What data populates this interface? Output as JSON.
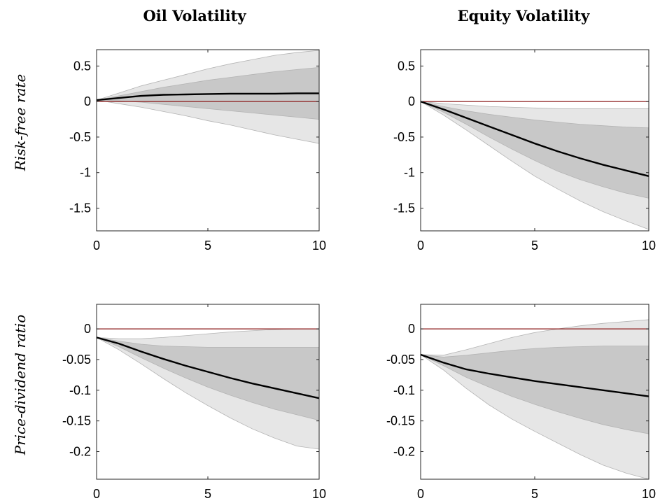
{
  "figure": {
    "column_titles": [
      "Oil Volatility",
      "Equity Volatility"
    ],
    "row_labels": [
      "Risk-free rate",
      "Price-dividend ratio"
    ]
  },
  "colors": {
    "outer_band": "#e6e6e6",
    "inner_band": "#c8c8c8",
    "band_edge": "#b4b4b4",
    "median_line": "#000000",
    "zero_line": "#8b1a1a"
  },
  "chart_data": [
    {
      "type": "area",
      "column": "Oil Volatility",
      "row": "Risk-free rate",
      "x": [
        0,
        1,
        2,
        3,
        4,
        5,
        6,
        7,
        8,
        9,
        10
      ],
      "xlim": [
        0,
        10
      ],
      "ylim": [
        -1.82,
        0.73
      ],
      "xticks": [
        0,
        5,
        10
      ],
      "xtick_labels": [
        "0",
        "5",
        "10"
      ],
      "yticks": [
        0.5,
        0,
        -0.5,
        -1,
        -1.5
      ],
      "ytick_labels": [
        "0.5",
        "0",
        "-0.5",
        "-1",
        "-1.5"
      ],
      "median": [
        0.02,
        0.05,
        0.08,
        0.095,
        0.1,
        0.105,
        0.11,
        0.11,
        0.11,
        0.115,
        0.115
      ],
      "inner_band": {
        "upper": [
          0.02,
          0.08,
          0.14,
          0.2,
          0.25,
          0.3,
          0.34,
          0.38,
          0.42,
          0.45,
          0.48
        ],
        "lower": [
          0.02,
          0.01,
          -0.01,
          -0.04,
          -0.07,
          -0.1,
          -0.13,
          -0.16,
          -0.19,
          -0.22,
          -0.25
        ]
      },
      "outer_band": {
        "upper": [
          0.02,
          0.12,
          0.22,
          0.3,
          0.38,
          0.46,
          0.53,
          0.59,
          0.65,
          0.69,
          0.72
        ],
        "lower": [
          0.02,
          -0.03,
          -0.08,
          -0.14,
          -0.2,
          -0.27,
          -0.33,
          -0.4,
          -0.47,
          -0.53,
          -0.59
        ]
      },
      "zero_line": 0
    },
    {
      "type": "area",
      "column": "Equity Volatility",
      "row": "Risk-free rate",
      "x": [
        0,
        1,
        2,
        3,
        4,
        5,
        6,
        7,
        8,
        9,
        10
      ],
      "xlim": [
        0,
        10
      ],
      "ylim": [
        -1.82,
        0.73
      ],
      "xticks": [
        0,
        5,
        10
      ],
      "xtick_labels": [
        "0",
        "5",
        "10"
      ],
      "yticks": [
        0.5,
        0,
        -0.5,
        -1,
        -1.5
      ],
      "ytick_labels": [
        "0.5",
        "0",
        "-0.5",
        "-1",
        "-1.5"
      ],
      "median": [
        0.0,
        -0.11,
        -0.23,
        -0.35,
        -0.47,
        -0.59,
        -0.7,
        -0.8,
        -0.89,
        -0.97,
        -1.05
      ],
      "inner_band": {
        "upper": [
          0.0,
          -0.07,
          -0.13,
          -0.18,
          -0.22,
          -0.26,
          -0.29,
          -0.32,
          -0.34,
          -0.36,
          -0.37
        ],
        "lower": [
          0.0,
          -0.15,
          -0.32,
          -0.5,
          -0.67,
          -0.83,
          -0.98,
          -1.1,
          -1.2,
          -1.29,
          -1.36
        ]
      },
      "outer_band": {
        "upper": [
          0.0,
          -0.03,
          -0.05,
          -0.07,
          -0.08,
          -0.09,
          -0.1,
          -0.1,
          -0.1,
          -0.1,
          -0.1
        ],
        "lower": [
          0.0,
          -0.19,
          -0.4,
          -0.62,
          -0.84,
          -1.05,
          -1.23,
          -1.4,
          -1.55,
          -1.68,
          -1.8
        ]
      },
      "zero_line": 0
    },
    {
      "type": "area",
      "column": "Oil Volatility",
      "row": "Price-dividend ratio",
      "x": [
        0,
        1,
        2,
        3,
        4,
        5,
        6,
        7,
        8,
        9,
        10
      ],
      "xlim": [
        0,
        10
      ],
      "ylim": [
        -0.245,
        0.04
      ],
      "xticks": [
        0,
        5,
        10
      ],
      "xtick_labels": [
        "0",
        "5",
        "10"
      ],
      "yticks": [
        0,
        -0.05,
        -0.1,
        -0.15,
        -0.2
      ],
      "ytick_labels": [
        "0",
        "-0.05",
        "-0.1",
        "-0.15",
        "-0.2"
      ],
      "median": [
        -0.014,
        -0.024,
        -0.037,
        -0.049,
        -0.06,
        -0.07,
        -0.08,
        -0.089,
        -0.097,
        -0.105,
        -0.113
      ],
      "inner_band": {
        "upper": [
          -0.014,
          -0.02,
          -0.025,
          -0.028,
          -0.029,
          -0.03,
          -0.03,
          -0.03,
          -0.03,
          -0.03,
          -0.03
        ],
        "lower": [
          -0.014,
          -0.029,
          -0.047,
          -0.064,
          -0.08,
          -0.095,
          -0.108,
          -0.12,
          -0.131,
          -0.14,
          -0.149
        ]
      },
      "outer_band": {
        "upper": [
          -0.014,
          -0.016,
          -0.016,
          -0.014,
          -0.011,
          -0.008,
          -0.005,
          -0.003,
          -0.001,
          0.0,
          0.0
        ],
        "lower": [
          -0.014,
          -0.034,
          -0.057,
          -0.081,
          -0.104,
          -0.125,
          -0.145,
          -0.163,
          -0.178,
          -0.191,
          -0.196
        ]
      },
      "zero_line": 0
    },
    {
      "type": "area",
      "column": "Equity Volatility",
      "row": "Price-dividend ratio",
      "x": [
        0,
        1,
        2,
        3,
        4,
        5,
        6,
        7,
        8,
        9,
        10
      ],
      "xlim": [
        0,
        10
      ],
      "ylim": [
        -0.245,
        0.04
      ],
      "xticks": [
        0,
        5,
        10
      ],
      "xtick_labels": [
        "0",
        "5",
        "10"
      ],
      "yticks": [
        0,
        -0.05,
        -0.1,
        -0.15,
        -0.2
      ],
      "ytick_labels": [
        "0",
        "-0.05",
        "-0.1",
        "-0.15",
        "-0.2"
      ],
      "median": [
        -0.042,
        -0.055,
        -0.066,
        -0.073,
        -0.079,
        -0.085,
        -0.09,
        -0.095,
        -0.1,
        -0.105,
        -0.11
      ],
      "inner_band": {
        "upper": [
          -0.042,
          -0.046,
          -0.043,
          -0.039,
          -0.035,
          -0.032,
          -0.03,
          -0.029,
          -0.028,
          -0.028,
          -0.028
        ],
        "lower": [
          -0.042,
          -0.06,
          -0.079,
          -0.095,
          -0.11,
          -0.123,
          -0.135,
          -0.146,
          -0.156,
          -0.164,
          -0.171
        ]
      },
      "outer_band": {
        "upper": [
          -0.042,
          -0.043,
          -0.034,
          -0.024,
          -0.014,
          -0.006,
          0.0,
          0.005,
          0.009,
          0.012,
          0.015
        ],
        "lower": [
          -0.042,
          -0.067,
          -0.097,
          -0.124,
          -0.147,
          -0.167,
          -0.186,
          -0.205,
          -0.222,
          -0.235,
          -0.245
        ]
      },
      "zero_line": 0
    }
  ]
}
